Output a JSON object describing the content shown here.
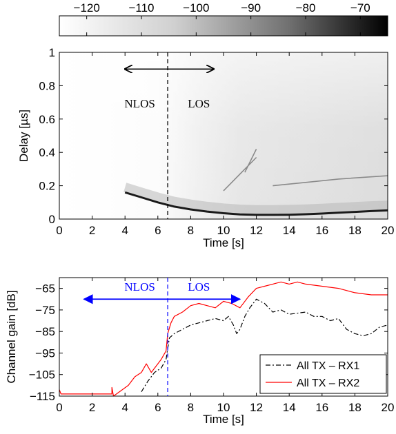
{
  "chart_data": [
    {
      "type": "colorbar",
      "ticks": [
        -120,
        -110,
        -100,
        -90,
        -80,
        -70
      ],
      "range": [
        -125,
        -65
      ],
      "colormap": "gray-reversed"
    },
    {
      "type": "heatmap",
      "title": "",
      "xlabel": "Time [s]",
      "ylabel": "Delay [µs]",
      "xlim": [
        0,
        20
      ],
      "ylim": [
        0,
        1
      ],
      "xticks": [
        0,
        2,
        4,
        6,
        8,
        10,
        12,
        14,
        16,
        18,
        20
      ],
      "yticks": [
        0,
        0.2,
        0.4,
        0.6,
        0.8,
        1
      ],
      "divider_time": 6.6,
      "annotations": [
        {
          "text": "NLOS",
          "x": 4.9,
          "y": 0.67
        },
        {
          "text": "LOS",
          "x": 8.5,
          "y": 0.67
        }
      ],
      "arrow": {
        "from": 4.0,
        "to": 9.4,
        "y": 0.9
      },
      "los_path": [
        [
          4.0,
          0.16
        ],
        [
          5.0,
          0.13
        ],
        [
          6.0,
          0.1
        ],
        [
          7.0,
          0.075
        ],
        [
          8.0,
          0.058
        ],
        [
          9.0,
          0.045
        ],
        [
          10.0,
          0.035
        ],
        [
          11.0,
          0.028
        ],
        [
          12.0,
          0.025
        ],
        [
          13.0,
          0.025
        ],
        [
          14.0,
          0.026
        ],
        [
          15.0,
          0.029
        ],
        [
          16.0,
          0.033
        ],
        [
          17.0,
          0.038
        ],
        [
          18.0,
          0.043
        ],
        [
          19.0,
          0.048
        ],
        [
          20.0,
          0.052
        ]
      ],
      "echo_paths": [
        [
          [
            13.0,
            0.2
          ],
          [
            15.0,
            0.22
          ],
          [
            17.0,
            0.24
          ],
          [
            20.0,
            0.26
          ]
        ],
        [
          [
            10.0,
            0.17
          ],
          [
            11.0,
            0.27
          ],
          [
            12.0,
            0.37
          ]
        ],
        [
          [
            11.3,
            0.28
          ],
          [
            12.0,
            0.42
          ]
        ]
      ]
    },
    {
      "type": "line",
      "title": "",
      "xlabel": "Time [s]",
      "ylabel": "Channel gain [dB]",
      "xlim": [
        0,
        20
      ],
      "ylim": [
        -115,
        -60
      ],
      "xticks": [
        0,
        2,
        4,
        6,
        8,
        10,
        12,
        14,
        16,
        18,
        20
      ],
      "yticks": [
        -65,
        -75,
        -85,
        -95,
        -105,
        -115
      ],
      "divider_time": 6.6,
      "annotations": [
        {
          "text": "NLOS",
          "x": 4.9,
          "y": -66
        },
        {
          "text": "LOS",
          "x": 8.5,
          "y": -66
        }
      ],
      "arrow": {
        "from": 1.5,
        "to": 11.0,
        "y": -70
      },
      "legend_position": "bottom-right",
      "series": [
        {
          "name": "All TX – RX1",
          "color": "#000000",
          "style": "dash-dot",
          "points": [
            [
              5.0,
              -113
            ],
            [
              5.4,
              -108
            ],
            [
              5.8,
              -104
            ],
            [
              6.2,
              -102
            ],
            [
              6.5,
              -98
            ],
            [
              6.7,
              -88
            ],
            [
              7.0,
              -86
            ],
            [
              7.5,
              -84
            ],
            [
              8.0,
              -82
            ],
            [
              8.5,
              -81
            ],
            [
              9.0,
              -80
            ],
            [
              9.5,
              -79
            ],
            [
              10.0,
              -80
            ],
            [
              10.3,
              -78
            ],
            [
              10.6,
              -82
            ],
            [
              10.8,
              -86
            ],
            [
              11.0,
              -84
            ],
            [
              11.3,
              -78
            ],
            [
              11.6,
              -74
            ],
            [
              12.0,
              -70
            ],
            [
              12.5,
              -72
            ],
            [
              13.0,
              -76
            ],
            [
              13.5,
              -75
            ],
            [
              14.0,
              -77
            ],
            [
              15.0,
              -76
            ],
            [
              15.5,
              -78
            ],
            [
              16.0,
              -78
            ],
            [
              16.5,
              -80
            ],
            [
              17.0,
              -79
            ],
            [
              17.5,
              -84
            ],
            [
              18.0,
              -86
            ],
            [
              18.5,
              -87
            ],
            [
              19.0,
              -86
            ],
            [
              19.5,
              -83
            ],
            [
              20.0,
              -82
            ]
          ]
        },
        {
          "name": "All TX – RX2",
          "color": "#ff0000",
          "style": "solid",
          "points": [
            [
              0.0,
              -112
            ],
            [
              0.1,
              -114
            ],
            [
              3.2,
              -114
            ],
            [
              3.2,
              -111
            ],
            [
              3.3,
              -115
            ],
            [
              4.2,
              -110
            ],
            [
              4.6,
              -106
            ],
            [
              5.0,
              -104
            ],
            [
              5.3,
              -100
            ],
            [
              5.6,
              -104
            ],
            [
              6.0,
              -100
            ],
            [
              6.2,
              -98
            ],
            [
              6.5,
              -94
            ],
            [
              6.6,
              -86
            ],
            [
              6.8,
              -81
            ],
            [
              7.0,
              -78
            ],
            [
              7.5,
              -76
            ],
            [
              8.0,
              -73
            ],
            [
              8.5,
              -72
            ],
            [
              9.0,
              -73
            ],
            [
              9.5,
              -74
            ],
            [
              10.0,
              -71
            ],
            [
              10.5,
              -72
            ],
            [
              11.0,
              -74
            ],
            [
              11.5,
              -69
            ],
            [
              12.0,
              -65
            ],
            [
              12.5,
              -64
            ],
            [
              13.0,
              -63
            ],
            [
              13.5,
              -62
            ],
            [
              14.0,
              -63
            ],
            [
              14.5,
              -62
            ],
            [
              15.0,
              -63
            ],
            [
              16.0,
              -64
            ],
            [
              17.0,
              -65
            ],
            [
              18.0,
              -67
            ],
            [
              19.0,
              -68
            ],
            [
              20.0,
              -68
            ]
          ]
        }
      ]
    }
  ]
}
